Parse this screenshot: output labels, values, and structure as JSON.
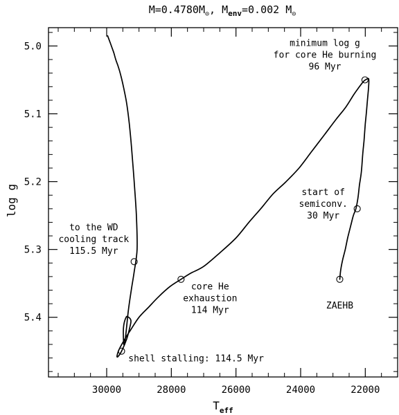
{
  "chart_data": {
    "type": "line",
    "title": {
      "main": "M=0.4780M",
      "sun1": "⊙",
      "mid": ", M",
      "sub": "env",
      "mid2": "=0.002 M",
      "sun2": "⊙"
    },
    "xlabel": {
      "main": "T",
      "sub": "eff"
    },
    "ylabel": "log g",
    "x_reversed": true,
    "y_reversed": true,
    "xlim": [
      31800,
      21000
    ],
    "ylim": [
      4.973,
      5.488
    ],
    "x_ticks": [
      30000,
      28000,
      26000,
      24000,
      22000
    ],
    "x_tick_labels": [
      "30000",
      "28000",
      "26000",
      "24000",
      "22000"
    ],
    "x_minor_step": 500,
    "y_ticks": [
      5.0,
      5.1,
      5.2,
      5.3,
      5.4
    ],
    "y_tick_labels": [
      "5.0",
      "5.1",
      "5.2",
      "5.3",
      "5.4"
    ],
    "y_minor_step": 0.02,
    "grid": false,
    "legend": "none",
    "series": [
      {
        "x": [
          22790,
          22760,
          22700,
          22620,
          22540,
          22450,
          22370,
          22290,
          22230,
          22180,
          22120,
          22080,
          22040,
          22000,
          21960,
          21930,
          21900,
          21890,
          21900,
          21960,
          22050,
          22180,
          22360,
          22600,
          22900,
          23250,
          23650,
          24050,
          24450,
          24850,
          25200,
          25600,
          26000,
          26500,
          27000,
          27400,
          27700,
          28050,
          28400,
          28700,
          29000,
          29250,
          29450,
          29620,
          29680,
          29650,
          29540,
          29380,
          29280,
          29250,
          29320,
          29400,
          29480,
          29470,
          29420,
          29330,
          29240,
          29150,
          29060,
          29080,
          29150,
          29230,
          29300,
          29380,
          29460,
          29540,
          29600,
          29660,
          29720,
          29780,
          29870,
          29970
        ],
        "y": [
          5.344,
          5.33,
          5.315,
          5.3,
          5.282,
          5.265,
          5.25,
          5.24,
          5.225,
          5.205,
          5.185,
          5.16,
          5.14,
          5.115,
          5.095,
          5.078,
          5.062,
          5.052,
          5.048,
          5.049,
          5.052,
          5.06,
          5.072,
          5.09,
          5.108,
          5.13,
          5.155,
          5.18,
          5.2,
          5.218,
          5.238,
          5.26,
          5.283,
          5.305,
          5.325,
          5.335,
          5.344,
          5.355,
          5.37,
          5.385,
          5.4,
          5.418,
          5.433,
          5.448,
          5.457,
          5.458,
          5.45,
          5.432,
          5.414,
          5.405,
          5.4,
          5.4,
          5.415,
          5.44,
          5.43,
          5.39,
          5.36,
          5.333,
          5.3,
          5.25,
          5.2,
          5.15,
          5.115,
          5.085,
          5.065,
          5.048,
          5.037,
          5.028,
          5.02,
          5.01,
          4.998,
          4.985
        ]
      }
    ],
    "markers": [
      {
        "name": "zaehb",
        "x": 22790,
        "y": 5.344
      },
      {
        "name": "semiconv",
        "x": 22250,
        "y": 5.24
      },
      {
        "name": "min-logg",
        "x": 22010,
        "y": 5.05
      },
      {
        "name": "core-he-exhaustion",
        "x": 27700,
        "y": 5.344
      },
      {
        "name": "shell-stalling",
        "x": 29540,
        "y": 5.45
      },
      {
        "name": "wd-cooling",
        "x": 29150,
        "y": 5.318
      }
    ],
    "annotations": [
      {
        "name": "annotation-min-logg",
        "x": 23250,
        "y": 5.0,
        "anchor": "middle",
        "lines": [
          "minimum log g",
          "for core He burning",
          "96 Myr"
        ]
      },
      {
        "name": "annotation-semiconv",
        "x": 23300,
        "y": 5.22,
        "anchor": "middle",
        "lines": [
          "start of",
          "semiconv.",
          "30 Myr"
        ]
      },
      {
        "name": "annotation-zaehb",
        "x": 22790,
        "y": 5.387,
        "anchor": "middle",
        "lines": [
          "ZAEHB"
        ]
      },
      {
        "name": "annotation-core-he",
        "x": 26800,
        "y": 5.359,
        "anchor": "middle",
        "lines": [
          "core He",
          "exhaustion",
          "114 Myr"
        ]
      },
      {
        "name": "annotation-wd",
        "x": 30400,
        "y": 5.272,
        "anchor": "middle",
        "lines": [
          "to the WD",
          "cooling track",
          "115.5 Myr"
        ]
      },
      {
        "name": "annotation-shell",
        "x": 29330,
        "y": 5.465,
        "anchor": "start",
        "lines": [
          "shell stalling: 114.5 Myr"
        ]
      }
    ]
  }
}
